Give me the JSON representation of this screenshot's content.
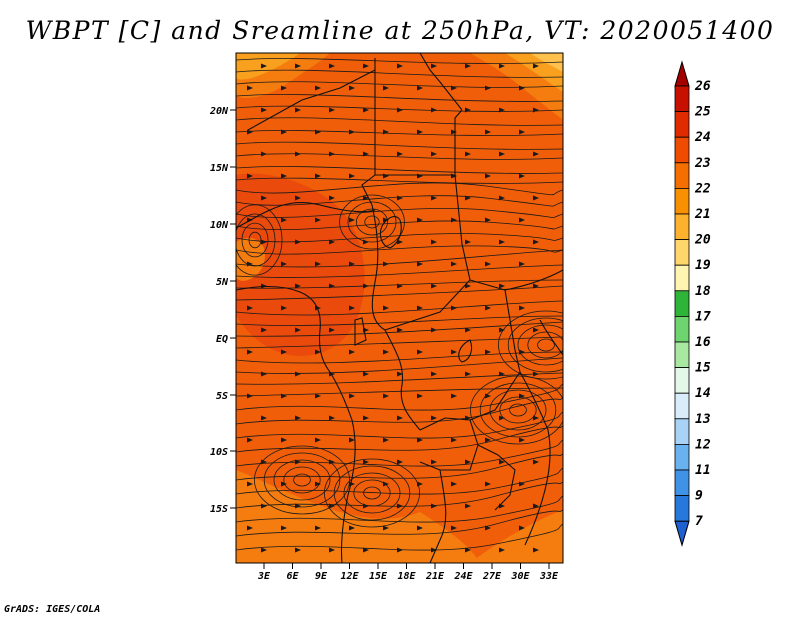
{
  "title": "WBPT [C] and Sreamline at 250hPa, VT: 2020051400",
  "credit": "GrADS: IGES/COLA",
  "map": {
    "lat_labels": [
      "20N",
      "15N",
      "10N",
      "5N",
      "EQ",
      "5S",
      "10S",
      "15S"
    ],
    "lon_labels": [
      "3E",
      "6E",
      "9E",
      "12E",
      "15E",
      "18E",
      "21E",
      "24E",
      "27E",
      "30E",
      "33E"
    ],
    "field_colors": {
      "c19": "#ffe38a",
      "c20": "#ffc04d",
      "c21": "#f9a01e",
      "c22": "#f57d0f",
      "c23": "#f05e0a",
      "c24": "#ea4a0c",
      "line": "#1a1a1a"
    }
  },
  "colorbar": {
    "labels": [
      "26",
      "25",
      "24",
      "23",
      "22",
      "21",
      "20",
      "19",
      "18",
      "17",
      "16",
      "15",
      "14",
      "13",
      "12",
      "11",
      "9",
      "7"
    ],
    "colors": [
      "#a50000",
      "#c81000",
      "#e02a00",
      "#f04c00",
      "#f56e00",
      "#f99000",
      "#fcb22c",
      "#ffd66b",
      "#fff4b0",
      "#2fb43a",
      "#6ed46f",
      "#a8e8a0",
      "#e4f8ea",
      "#d8ecfa",
      "#a9d2f7",
      "#6ab2ef",
      "#3f92e6",
      "#2778dc",
      "#1f5fd0"
    ]
  }
}
